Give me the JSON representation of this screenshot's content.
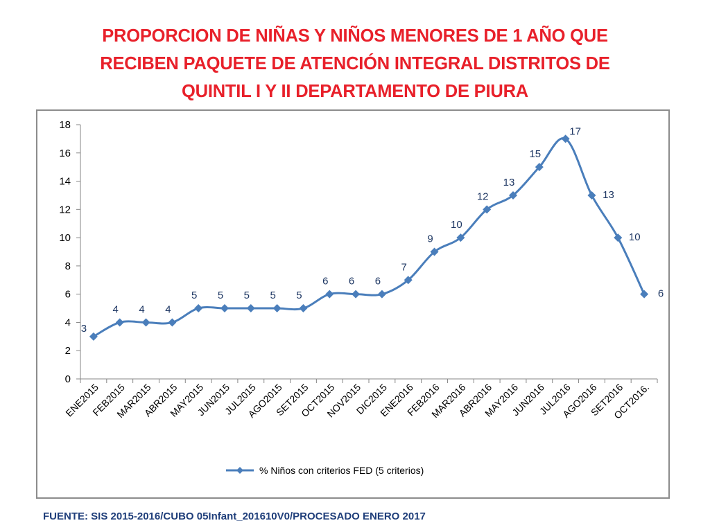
{
  "slide": {
    "title_lines": [
      "PROPORCION DE NIÑAS Y NIÑOS MENORES DE 1 AÑO QUE",
      "RECIBEN PAQUETE DE ATENCIÓN INTEGRAL  DISTRITOS DE",
      "QUINTIL I Y II DEPARTAMENTO DE PIURA"
    ],
    "source": "FUENTE: SIS 2015-2016/CUBO 05Infant_201610V0/PROCESADO ENERO 2017"
  },
  "colors": {
    "title": "#e8202a",
    "series": "#4a7ebb",
    "data_label": "#1f3864",
    "source": "#1f3e7a"
  },
  "chart_data": {
    "type": "line",
    "categories": [
      "ENE2015",
      "FEB2015",
      "MAR2015",
      "ABR2015",
      "MAY2015",
      "JUN2015",
      "JUL2015",
      "AGO2015",
      "SET2015",
      "OCT2015",
      "NOV2015",
      "DIC2015",
      "ENE2016",
      "FEB2016",
      "MAR2016",
      "ABR2016",
      "MAY2016",
      "JUN2016",
      "JUL2016",
      "AGO2016",
      "SET2016",
      "OCT2016."
    ],
    "series": [
      {
        "name": "% Niños con criterios FED (5 criterios)",
        "values": [
          3,
          4,
          4,
          4,
          5,
          5,
          5,
          5,
          5,
          6,
          6,
          6,
          7,
          9,
          10,
          12,
          13,
          15,
          17,
          13,
          10,
          6
        ],
        "marker": "diamond",
        "smooth": true
      }
    ],
    "ylim": [
      0,
      18
    ],
    "yticks": [
      0,
      2,
      4,
      6,
      8,
      10,
      12,
      14,
      16,
      18
    ],
    "grid": false,
    "legend": "bottom",
    "data_labels": true
  }
}
